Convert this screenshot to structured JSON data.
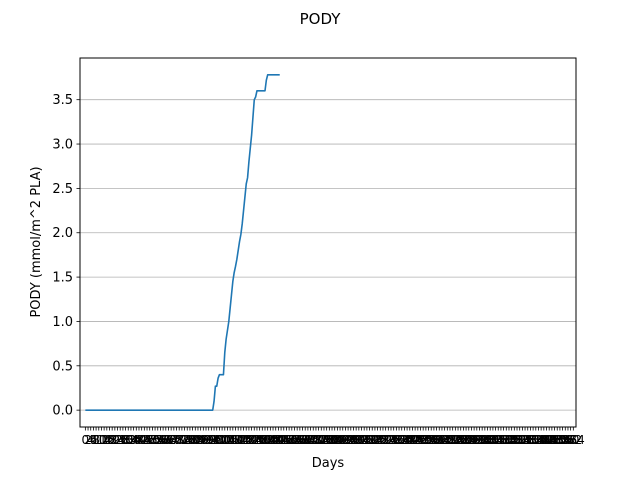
{
  "chart_data": {
    "type": "line",
    "title": "PODY",
    "xlabel": "Days",
    "ylabel": "PODY (mmol/m^2 PLA)",
    "xlim": [
      -4,
      366
    ],
    "ylim": [
      -0.19,
      3.97
    ],
    "ytick_labels": [
      "0.0",
      "0.5",
      "1.0",
      "1.5",
      "2.0",
      "2.5",
      "3.0",
      "3.5"
    ],
    "ytick_values": [
      0.0,
      0.5,
      1.0,
      1.5,
      2.0,
      2.5,
      3.0,
      3.5
    ],
    "grid": "horizontal",
    "x_tick_step": 2,
    "series": [
      {
        "color": "#1f77b4",
        "points": [
          [
            0,
            0.0
          ],
          [
            95,
            0.0
          ],
          [
            96,
            0.1
          ],
          [
            97,
            0.27
          ],
          [
            98,
            0.27
          ],
          [
            99,
            0.36
          ],
          [
            100,
            0.4
          ],
          [
            103,
            0.4
          ],
          [
            104,
            0.65
          ],
          [
            105,
            0.8
          ],
          [
            106,
            0.9
          ],
          [
            107,
            1.0
          ],
          [
            108,
            1.15
          ],
          [
            109,
            1.3
          ],
          [
            110,
            1.45
          ],
          [
            111,
            1.55
          ],
          [
            112,
            1.62
          ],
          [
            113,
            1.7
          ],
          [
            114,
            1.8
          ],
          [
            115,
            1.9
          ],
          [
            116,
            1.98
          ],
          [
            117,
            2.1
          ],
          [
            118,
            2.25
          ],
          [
            119,
            2.4
          ],
          [
            120,
            2.55
          ],
          [
            121,
            2.62
          ],
          [
            122,
            2.8
          ],
          [
            123,
            2.95
          ],
          [
            124,
            3.1
          ],
          [
            125,
            3.3
          ],
          [
            126,
            3.5
          ],
          [
            127,
            3.53
          ],
          [
            128,
            3.6
          ],
          [
            130,
            3.6
          ],
          [
            134,
            3.6
          ],
          [
            135,
            3.72
          ],
          [
            136,
            3.78
          ],
          [
            138,
            3.78
          ],
          [
            145,
            3.78
          ]
        ]
      }
    ]
  }
}
